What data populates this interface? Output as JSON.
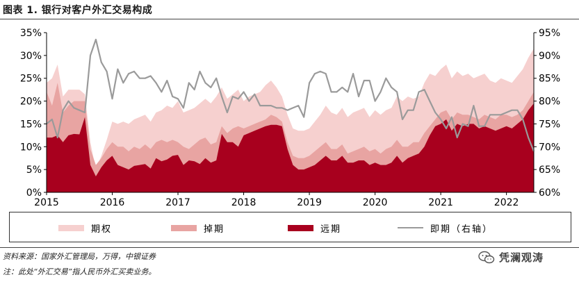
{
  "figure_title": "图表 1. 银行对客户外汇交易构成",
  "legend": {
    "options": "期权",
    "swaps": "掉期",
    "forwards": "远期",
    "spot": "即期（右轴）"
  },
  "notes": {
    "source": "资料来源：国家外汇管理局，万得，中银证券",
    "remark": "注：此处“外汇交易”指人民币外汇买卖业务。"
  },
  "watermark": {
    "text": "凭澜观涛",
    "icon": "wechat-icon"
  },
  "colors": {
    "options": "#f6d0cf",
    "swaps": "#e8a4a2",
    "forwards": "#a8001e",
    "spot": "#9a9a9a",
    "axis": "#000000"
  },
  "chart_data": {
    "type": "area",
    "x_tick_labels": [
      "2015",
      "2016",
      "2017",
      "2018",
      "2019",
      "2020",
      "2021",
      "2022"
    ],
    "left_axis": {
      "ticks": [
        "0%",
        "5%",
        "10%",
        "15%",
        "20%",
        "25%",
        "30%",
        "35%"
      ],
      "min": 0,
      "max": 35,
      "unit": "%"
    },
    "right_axis": {
      "ticks": [
        "60%",
        "65%",
        "70%",
        "75%",
        "80%",
        "85%",
        "90%",
        "95%"
      ],
      "min": 60,
      "max": 95,
      "unit": "%"
    },
    "grid": false,
    "x": [
      "2015-01",
      "2015-02",
      "2015-03",
      "2015-04",
      "2015-05",
      "2015-06",
      "2015-07",
      "2015-08",
      "2015-09",
      "2015-10",
      "2015-11",
      "2015-12",
      "2016-01",
      "2016-02",
      "2016-03",
      "2016-04",
      "2016-05",
      "2016-06",
      "2016-07",
      "2016-08",
      "2016-09",
      "2016-10",
      "2016-11",
      "2016-12",
      "2017-01",
      "2017-02",
      "2017-03",
      "2017-04",
      "2017-05",
      "2017-06",
      "2017-07",
      "2017-08",
      "2017-09",
      "2017-10",
      "2017-11",
      "2017-12",
      "2018-01",
      "2018-02",
      "2018-03",
      "2018-04",
      "2018-05",
      "2018-06",
      "2018-07",
      "2018-08",
      "2018-09",
      "2018-10",
      "2018-11",
      "2018-12",
      "2019-01",
      "2019-02",
      "2019-03",
      "2019-04",
      "2019-05",
      "2019-06",
      "2019-07",
      "2019-08",
      "2019-09",
      "2019-10",
      "2019-11",
      "2019-12",
      "2020-01",
      "2020-02",
      "2020-03",
      "2020-04",
      "2020-05",
      "2020-06",
      "2020-07",
      "2020-08",
      "2020-09",
      "2020-10",
      "2020-11",
      "2020-12",
      "2021-01",
      "2021-02",
      "2021-03",
      "2021-04",
      "2021-05",
      "2021-06",
      "2021-07",
      "2021-08",
      "2021-09",
      "2021-10",
      "2021-11",
      "2021-12",
      "2022-01",
      "2022-02",
      "2022-03",
      "2022-04",
      "2022-05",
      "2022-06"
    ],
    "series": [
      {
        "name": "远期",
        "axis": "left",
        "kind": "stacked-area",
        "values": [
          12,
          12,
          12.5,
          11,
          12.5,
          12.8,
          12.7,
          16.5,
          6,
          3.5,
          5.5,
          7,
          8,
          6,
          5.5,
          5,
          5.8,
          6,
          6.2,
          5.2,
          7.5,
          6.8,
          7.2,
          8,
          8.2,
          6,
          7,
          6.8,
          6.2,
          7.5,
          6.5,
          7,
          12.8,
          11,
          11,
          10,
          12.5,
          13,
          13.5,
          14,
          14.5,
          14.8,
          14.8,
          14.5,
          9.5,
          6,
          5,
          5,
          5.5,
          6,
          7,
          8,
          7,
          7,
          8,
          6.5,
          6.5,
          7,
          7,
          6,
          6.5,
          6,
          6,
          6.5,
          8,
          6.5,
          7.5,
          8,
          8.5,
          10,
          12.5,
          14.5,
          15,
          16,
          13.5,
          15,
          14.5,
          15,
          15,
          14,
          14.5,
          14,
          13.5,
          14,
          14.5,
          14,
          15,
          16,
          18,
          19.5
        ]
      },
      {
        "name": "掉期",
        "axis": "left",
        "kind": "stacked-area",
        "values": [
          22,
          19,
          24,
          17.5,
          19,
          20,
          20,
          20,
          9.5,
          6,
          7.5,
          9.5,
          11,
          10,
          10,
          9,
          10,
          9.5,
          10.5,
          9.5,
          11,
          11.5,
          11,
          11.5,
          11,
          10,
          9.5,
          10.5,
          11.5,
          12,
          10.5,
          11,
          14.5,
          13,
          14,
          14.5,
          14,
          14.5,
          15,
          15.5,
          16,
          17,
          16.5,
          15.5,
          11,
          8,
          7.5,
          7.5,
          8,
          9,
          10,
          11,
          9.5,
          9.5,
          10.5,
          8.5,
          9,
          9.5,
          10,
          9,
          9.5,
          8.5,
          9.5,
          10,
          11.5,
          10,
          10,
          11,
          11,
          13,
          14.5,
          16,
          17.5,
          18,
          16,
          17.5,
          17,
          17,
          16.5,
          16,
          17,
          16.5,
          16,
          17,
          17,
          16.5,
          17,
          18,
          20,
          22
        ]
      },
      {
        "name": "期权",
        "axis": "left",
        "kind": "stacked-area",
        "values": [
          24,
          25,
          28,
          21,
          22.5,
          22.5,
          22.5,
          21.5,
          11,
          5,
          8,
          11.5,
          15.5,
          15,
          15.5,
          15,
          16,
          16.5,
          17,
          15.5,
          17.5,
          18,
          19,
          18.5,
          20,
          17.5,
          18,
          18.5,
          19.5,
          20.5,
          19.5,
          21,
          23,
          20.5,
          21.5,
          22.5,
          20,
          21,
          21.5,
          22,
          23.5,
          24.5,
          23,
          21,
          17,
          14,
          13.5,
          13.5,
          14,
          15.5,
          17,
          19,
          17.5,
          17,
          18.5,
          16.5,
          17.5,
          18,
          18.5,
          16.5,
          18,
          17,
          18,
          18.5,
          21,
          20,
          21,
          20.5,
          21,
          24,
          26,
          25.5,
          27,
          28,
          25,
          26.5,
          25.5,
          26,
          25,
          25.5,
          26,
          24.5,
          24,
          25,
          24.5,
          24,
          25.5,
          27,
          29.5,
          31.5
        ]
      },
      {
        "name": "即期（右轴）",
        "axis": "right",
        "kind": "line",
        "values": [
          75,
          76,
          72,
          78,
          80,
          78.5,
          78,
          77.5,
          90,
          93.5,
          88.5,
          86.5,
          80.5,
          87,
          84,
          86,
          86.5,
          85,
          85,
          85.5,
          84,
          82,
          84.5,
          81,
          80.5,
          78.5,
          84,
          82.5,
          86.5,
          84,
          83,
          85,
          81,
          77.5,
          81,
          80.5,
          82,
          80,
          81.5,
          79,
          79,
          79,
          78.5,
          78.5,
          78,
          78.5,
          79,
          76.5,
          84,
          86,
          86.5,
          86,
          82,
          82,
          83,
          82,
          86,
          81,
          84.5,
          84.5,
          80,
          82,
          85,
          83,
          82,
          76,
          78,
          78,
          82,
          82.5,
          80,
          77.5,
          76,
          74,
          76.5,
          72,
          75,
          74.5,
          79,
          74.5,
          74.5,
          77,
          77,
          77,
          77.5,
          78,
          78,
          76,
          72,
          69
        ]
      }
    ]
  }
}
